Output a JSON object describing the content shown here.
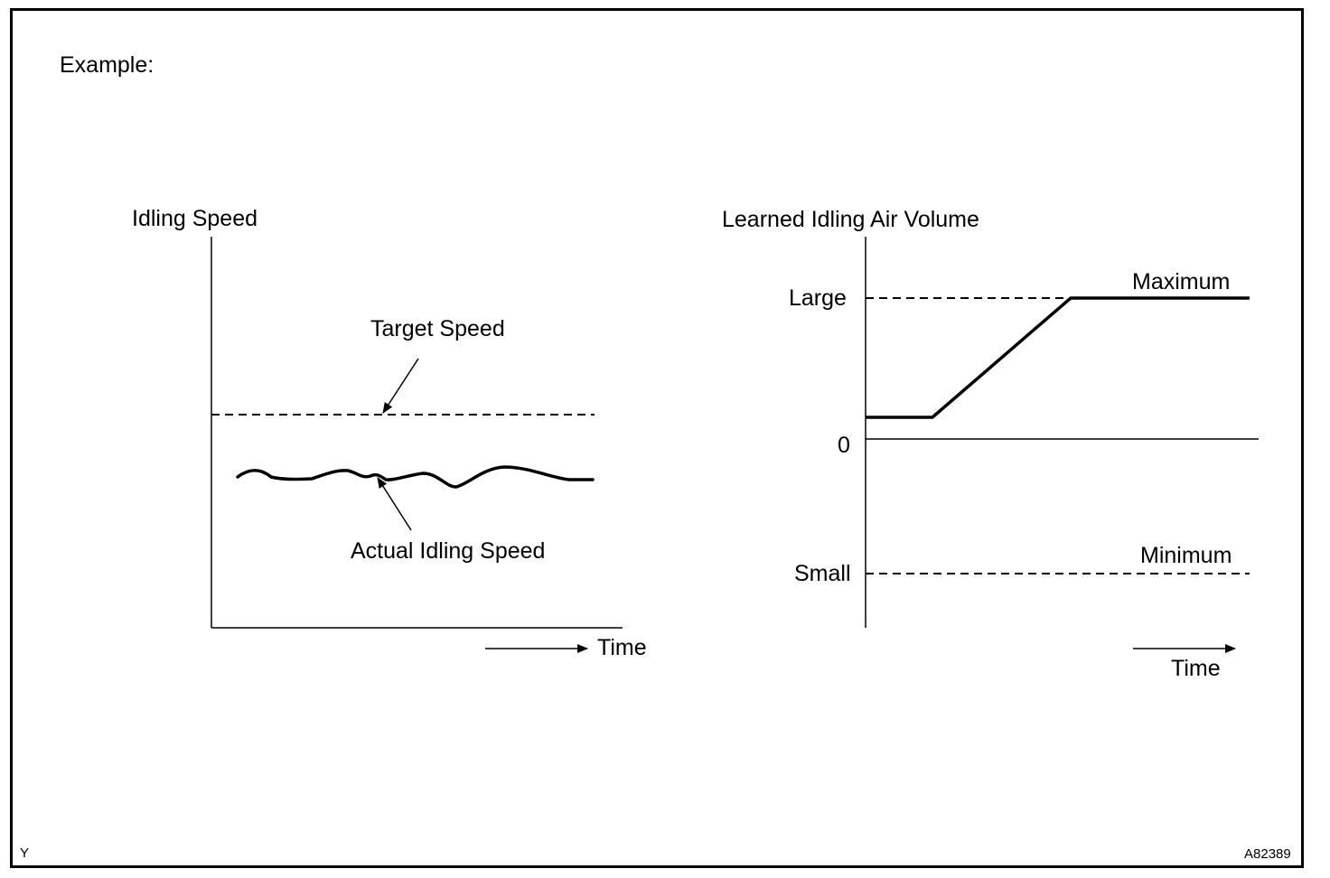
{
  "header": {
    "title": "Example:"
  },
  "left_chart": {
    "y_label": "Idling Speed",
    "x_label": "Time",
    "target_label": "Target Speed",
    "actual_label": "Actual Idling Speed"
  },
  "right_chart": {
    "y_label": "Learned Idling Air Volume",
    "x_label": "Time",
    "level_large": "Large",
    "level_zero": "0",
    "level_small": "Small",
    "max_label": "Maximum",
    "min_label": "Minimum"
  },
  "footer": {
    "left_code": "Y",
    "figure_id": "A82389"
  }
}
